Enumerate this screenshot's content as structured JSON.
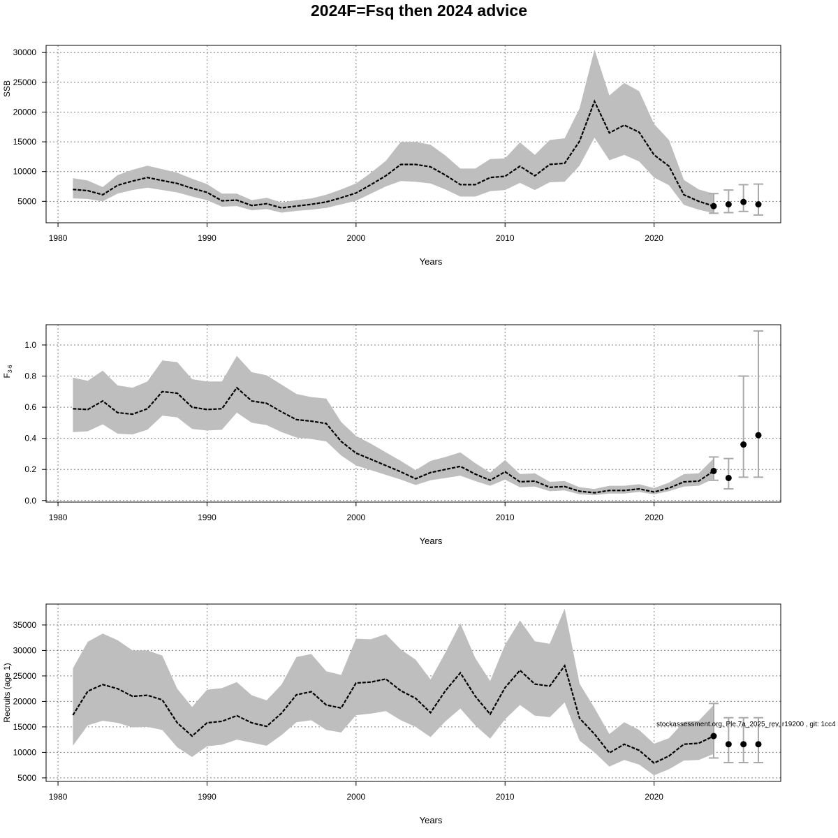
{
  "title": "2024F=Fsq then 2024 advice",
  "colors": {
    "band": "#bebebe",
    "line": "#000000",
    "grid": "#808080",
    "errorbar": "#a9a9a9"
  },
  "chart_data": [
    {
      "type": "area",
      "name": "ssb",
      "ylabel": "SSB",
      "ylabel_sub": "",
      "xlabel": "Years",
      "xlim": [
        1979.2,
        2028.5
      ],
      "ylim": [
        1400,
        31200
      ],
      "xticks": [
        1980,
        1990,
        2000,
        2010,
        2020
      ],
      "yticks": [
        5000,
        10000,
        15000,
        20000,
        25000,
        30000
      ],
      "ytick_labels": [
        "5000",
        "10000",
        "15000",
        "20000",
        "25000",
        "30000"
      ],
      "grid": true,
      "years": [
        1981,
        1982,
        1983,
        1984,
        1985,
        1986,
        1987,
        1988,
        1989,
        1990,
        1991,
        1992,
        1993,
        1994,
        1995,
        1996,
        1997,
        1998,
        1999,
        2000,
        2001,
        2002,
        2003,
        2004,
        2005,
        2006,
        2007,
        2008,
        2009,
        2010,
        2011,
        2012,
        2013,
        2014,
        2015,
        2016,
        2017,
        2018,
        2019,
        2020,
        2021,
        2022,
        2023,
        2024
      ],
      "estimate": [
        7000,
        6800,
        6100,
        7700,
        8400,
        9000,
        8500,
        8000,
        7200,
        6500,
        5100,
        5200,
        4300,
        4600,
        3900,
        4200,
        4500,
        4900,
        5600,
        6400,
        7800,
        9300,
        11200,
        11200,
        10800,
        9400,
        7800,
        7800,
        9000,
        9200,
        10900,
        9300,
        11200,
        11400,
        15100,
        21800,
        16500,
        17800,
        16600,
        12800,
        10900,
        6100,
        5000,
        4200
      ],
      "lower": [
        5500,
        5400,
        5000,
        6300,
        6900,
        7300,
        6900,
        6500,
        5800,
        5200,
        4100,
        4200,
        3500,
        3700,
        3100,
        3400,
        3600,
        3900,
        4500,
        5100,
        6300,
        7500,
        8400,
        8300,
        8000,
        7000,
        5800,
        5800,
        6700,
        6900,
        8100,
        6900,
        8200,
        8300,
        11000,
        15700,
        11900,
        12800,
        11700,
        9000,
        7700,
        4400,
        3600,
        3000
      ],
      "upper": [
        8900,
        8500,
        7400,
        9400,
        10300,
        11000,
        10400,
        9800,
        8800,
        7900,
        6300,
        6300,
        5200,
        5600,
        4800,
        5200,
        5500,
        6100,
        7000,
        8000,
        9800,
        11800,
        15000,
        15000,
        14500,
        12700,
        10500,
        10500,
        12100,
        12200,
        14900,
        12800,
        15300,
        15600,
        20600,
        30500,
        22800,
        24900,
        23500,
        18000,
        15300,
        8600,
        7000,
        6300
      ],
      "forecast": [
        {
          "year": 2024,
          "value": 4200,
          "lower": 3000,
          "upper": 6300
        },
        {
          "year": 2025,
          "value": 4500,
          "lower": 3100,
          "upper": 6900
        },
        {
          "year": 2026,
          "value": 4900,
          "lower": 3300,
          "upper": 7800
        },
        {
          "year": 2027,
          "value": 4500,
          "lower": 2700,
          "upper": 7900
        }
      ]
    },
    {
      "type": "area",
      "name": "fbar",
      "ylabel": "F",
      "ylabel_sub": "3-6",
      "xlabel": "Years",
      "xlim": [
        1979.2,
        2028.5
      ],
      "ylim": [
        -0.01,
        1.13
      ],
      "xticks": [
        1980,
        1990,
        2000,
        2010,
        2020
      ],
      "yticks": [
        0.0,
        0.2,
        0.4,
        0.6,
        0.8,
        1.0
      ],
      "ytick_labels": [
        "0.0",
        "0.2",
        "0.4",
        "0.6",
        "0.8",
        "1.0"
      ],
      "grid": true,
      "years": [
        1981,
        1982,
        1983,
        1984,
        1985,
        1986,
        1987,
        1988,
        1989,
        1990,
        1991,
        1992,
        1993,
        1994,
        1995,
        1996,
        1997,
        1998,
        1999,
        2000,
        2001,
        2002,
        2003,
        2004,
        2005,
        2006,
        2007,
        2008,
        2009,
        2010,
        2011,
        2012,
        2013,
        2014,
        2015,
        2016,
        2017,
        2018,
        2019,
        2020,
        2021,
        2022,
        2023,
        2024
      ],
      "estimate": [
        0.59,
        0.585,
        0.64,
        0.565,
        0.555,
        0.59,
        0.7,
        0.69,
        0.6,
        0.585,
        0.59,
        0.725,
        0.64,
        0.625,
        0.57,
        0.52,
        0.51,
        0.495,
        0.38,
        0.305,
        0.265,
        0.225,
        0.185,
        0.14,
        0.18,
        0.2,
        0.22,
        0.17,
        0.13,
        0.185,
        0.12,
        0.125,
        0.085,
        0.09,
        0.06,
        0.05,
        0.065,
        0.065,
        0.075,
        0.055,
        0.08,
        0.12,
        0.125,
        0.19
      ],
      "lower": [
        0.44,
        0.445,
        0.49,
        0.43,
        0.425,
        0.455,
        0.545,
        0.535,
        0.46,
        0.45,
        0.455,
        0.565,
        0.5,
        0.485,
        0.44,
        0.405,
        0.395,
        0.38,
        0.29,
        0.225,
        0.195,
        0.165,
        0.135,
        0.1,
        0.13,
        0.145,
        0.16,
        0.125,
        0.095,
        0.135,
        0.085,
        0.09,
        0.06,
        0.065,
        0.04,
        0.035,
        0.045,
        0.045,
        0.055,
        0.04,
        0.06,
        0.09,
        0.095,
        0.14
      ],
      "upper": [
        0.79,
        0.77,
        0.835,
        0.74,
        0.725,
        0.765,
        0.9,
        0.89,
        0.78,
        0.765,
        0.765,
        0.93,
        0.825,
        0.805,
        0.745,
        0.685,
        0.665,
        0.655,
        0.505,
        0.415,
        0.365,
        0.31,
        0.255,
        0.195,
        0.255,
        0.28,
        0.31,
        0.24,
        0.18,
        0.26,
        0.17,
        0.175,
        0.12,
        0.125,
        0.085,
        0.075,
        0.095,
        0.095,
        0.105,
        0.08,
        0.115,
        0.17,
        0.175,
        0.27
      ],
      "forecast": [
        {
          "year": 2024,
          "value": 0.19,
          "lower": 0.13,
          "upper": 0.28
        },
        {
          "year": 2025,
          "value": 0.145,
          "lower": 0.075,
          "upper": 0.27
        },
        {
          "year": 2026,
          "value": 0.36,
          "lower": 0.15,
          "upper": 0.8
        },
        {
          "year": 2027,
          "value": 0.42,
          "lower": 0.15,
          "upper": 1.09
        }
      ]
    },
    {
      "type": "area",
      "name": "recruits",
      "ylabel": "Recruits (age 1)",
      "ylabel_sub": "",
      "xlabel": "Years",
      "xlim": [
        1979.2,
        2028.5
      ],
      "ylim": [
        4300,
        39100
      ],
      "xticks": [
        1980,
        1990,
        2000,
        2010,
        2020
      ],
      "yticks": [
        5000,
        10000,
        15000,
        20000,
        25000,
        30000,
        35000
      ],
      "ytick_labels": [
        "5000",
        "10000",
        "15000",
        "20000",
        "25000",
        "30000",
        "35000"
      ],
      "grid": true,
      "annotation": "stockassessment.org, Ple.7a_2025_rev, r19200 , git: 1cc4",
      "years": [
        1981,
        1982,
        1983,
        1984,
        1985,
        1986,
        1987,
        1988,
        1989,
        1990,
        1991,
        1992,
        1993,
        1994,
        1995,
        1996,
        1997,
        1998,
        1999,
        2000,
        2001,
        2002,
        2003,
        2004,
        2005,
        2006,
        2007,
        2008,
        2009,
        2010,
        2011,
        2012,
        2013,
        2014,
        2015,
        2016,
        2017,
        2018,
        2019,
        2020,
        2021,
        2022,
        2023,
        2024
      ],
      "estimate": [
        17300,
        22000,
        23300,
        22500,
        21000,
        21200,
        20300,
        15800,
        13200,
        15800,
        16100,
        17200,
        15800,
        15100,
        17700,
        21300,
        21900,
        19300,
        18700,
        23600,
        23800,
        24400,
        22100,
        20600,
        17800,
        22100,
        25600,
        21000,
        17500,
        22700,
        26100,
        23400,
        23000,
        27000,
        16700,
        13600,
        9900,
        11600,
        10400,
        7900,
        9300,
        11600,
        11800,
        13200
      ],
      "lower": [
        11300,
        15300,
        16200,
        15800,
        14900,
        15000,
        14400,
        11000,
        9100,
        11200,
        11500,
        12500,
        11900,
        11300,
        13400,
        15900,
        16300,
        14400,
        13900,
        17300,
        17600,
        18100,
        16300,
        15000,
        13000,
        16100,
        18600,
        15300,
        12700,
        16500,
        19300,
        17200,
        16900,
        19800,
        12300,
        10000,
        7200,
        8500,
        7600,
        5500,
        6700,
        8400,
        8500,
        9700
      ],
      "upper": [
        26500,
        31700,
        33300,
        32000,
        30000,
        30000,
        29000,
        22500,
        18900,
        22300,
        22600,
        23800,
        21200,
        20200,
        23300,
        28700,
        29300,
        25900,
        25200,
        32300,
        32200,
        33200,
        30200,
        28200,
        24300,
        29600,
        35300,
        28500,
        24000,
        31100,
        35900,
        31800,
        31300,
        38200,
        23500,
        18700,
        13600,
        15900,
        14400,
        11700,
        12800,
        16000,
        16200,
        19300
      ],
      "forecast": [
        {
          "year": 2024,
          "value": 13200,
          "lower": 8900,
          "upper": 19600
        },
        {
          "year": 2025,
          "value": 11600,
          "lower": 8000,
          "upper": 16800
        },
        {
          "year": 2026,
          "value": 11600,
          "lower": 8000,
          "upper": 16800
        },
        {
          "year": 2027,
          "value": 11600,
          "lower": 8000,
          "upper": 16800
        }
      ]
    }
  ]
}
